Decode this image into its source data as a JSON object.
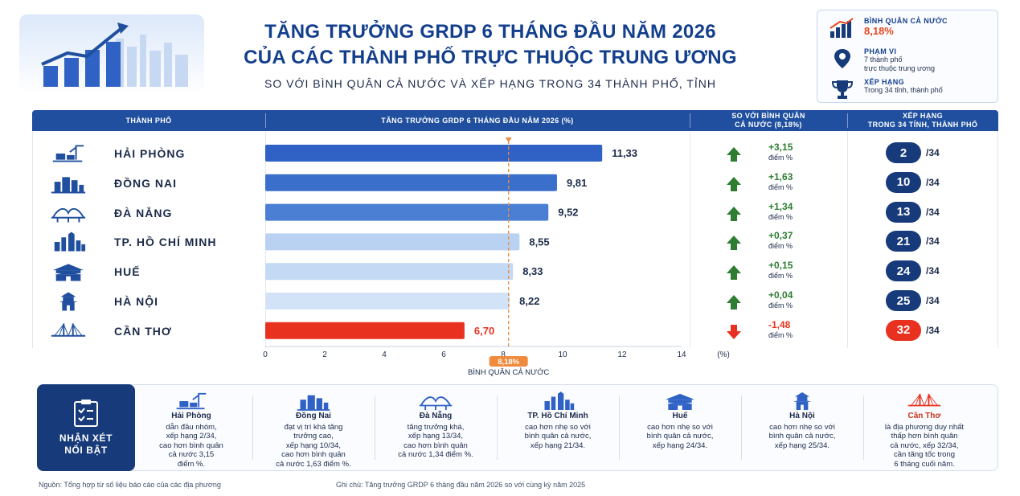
{
  "title": {
    "line1": "TĂNG TRƯỞNG GRDP 6 THÁNG ĐẦU NĂM 2026",
    "line2": "CỦA CÁC THÀNH PHỐ TRỰC THUỘC TRUNG ƯƠNG",
    "subtitle": "SO VỚI BÌNH QUÂN CẢ NƯỚC VÀ XẾP HẠNG TRONG 34 THÀNH PHỐ, TỈNH"
  },
  "info": {
    "average_label": "BÌNH QUÂN CẢ NƯỚC",
    "average_value": "8,18%",
    "scope_label": "PHẠM VI",
    "scope_line1": "7 thành phố",
    "scope_line2": "trực thuộc trung ương",
    "rank_label": "XẾP HẠNG",
    "rank_text": "Trong 34 tỉnh, thành phố"
  },
  "table_header": {
    "city": "THÀNH PHỐ",
    "growth": "TĂNG TRƯỞNG GRDP 6 THÁNG ĐẦU NĂM 2026 (%)",
    "compare_line1": "SO VỚI BÌNH QUÂN",
    "compare_line2": "CẢ NƯỚC (8,18%)",
    "rank_line1": "XẾP HẠNG",
    "rank_line2": "TRONG 34 TỈNH, THÀNH PHỐ"
  },
  "rows": [
    {
      "city": "HẢI PHÒNG",
      "value_label": "11,33",
      "diff": "+3,15",
      "diff_unit": "điểm %",
      "rank": "2",
      "rank_total": "/34",
      "trend": "up",
      "icon": "port-crane-icon"
    },
    {
      "city": "ĐỒNG NAI",
      "value_label": "9,81",
      "diff": "+1,63",
      "diff_unit": "điểm %",
      "rank": "10",
      "rank_total": "/34",
      "trend": "up",
      "icon": "industrial-buildings-icon"
    },
    {
      "city": "ĐÀ NẴNG",
      "value_label": "9,52",
      "diff": "+1,34",
      "diff_unit": "điểm %",
      "rank": "13",
      "rank_total": "/34",
      "trend": "up",
      "icon": "dragon-bridge-icon"
    },
    {
      "city": "TP. HỒ CHÍ MINH",
      "value_label": "8,55",
      "diff": "+0,37",
      "diff_unit": "điểm %",
      "rank": "21",
      "rank_total": "/34",
      "trend": "up",
      "icon": "skyline-icon"
    },
    {
      "city": "HUẾ",
      "value_label": "8,33",
      "diff": "+0,15",
      "diff_unit": "điểm %",
      "rank": "24",
      "rank_total": "/34",
      "trend": "up",
      "icon": "imperial-gate-icon"
    },
    {
      "city": "HÀ NỘI",
      "value_label": "8,22",
      "diff": "+0,04",
      "diff_unit": "điểm %",
      "rank": "25",
      "rank_total": "/34",
      "trend": "up",
      "icon": "pagoda-icon"
    },
    {
      "city": "CẦN THƠ",
      "value_label": "6,70",
      "diff": "-1,48",
      "diff_unit": "điểm %",
      "rank": "32",
      "rank_total": "/34",
      "trend": "down",
      "icon": "cable-bridge-icon"
    }
  ],
  "chart_data": {
    "type": "bar",
    "orientation": "horizontal",
    "categories": [
      "HẢI PHÒNG",
      "ĐỒNG NAI",
      "ĐÀ NẴNG",
      "TP. HỒ CHÍ MINH",
      "HUẾ",
      "HÀ NỘI",
      "CẦN THƠ"
    ],
    "values": [
      11.33,
      9.81,
      9.52,
      8.55,
      8.33,
      8.22,
      6.7
    ],
    "value_labels": [
      "11,33",
      "9,81",
      "9,52",
      "8,55",
      "8,33",
      "8,22",
      "6,70"
    ],
    "xlim": [
      0,
      14
    ],
    "x_ticks": [
      "0",
      "2",
      "4",
      "6",
      "8",
      "10",
      "12",
      "14"
    ],
    "x_unit": "(%)",
    "reference_value": 8.18,
    "reference_label": "8,18%",
    "reference_caption": "BÌNH QUÂN CẢ NƯỚC",
    "bar_colors": [
      "#2f62c4",
      "#3a6fcc",
      "#4a7fd4",
      "#b9d2f1",
      "#c4daf4",
      "#d2e3f7",
      "#e8311f"
    ],
    "reference_color": "#f08a3c",
    "grid": false
  },
  "comments": {
    "label_line1": "NHẬN XÉT",
    "label_line2": "NỔI BẬT",
    "items": [
      {
        "name": "Hải Phòng",
        "text": [
          "dẫn đầu nhóm,",
          "xếp hạng 2/34,",
          "cao hơn bình quân",
          "cả nước 3,15",
          "điểm %."
        ],
        "icon": "port-crane-icon"
      },
      {
        "name": "Đồng Nai",
        "text": [
          "đạt vị trí khá tăng",
          "trưởng cao,",
          "xếp hạng 10/34,",
          "cao hơn bình quân",
          "cả nước 1,63 điểm %."
        ],
        "icon": "industrial-buildings-icon"
      },
      {
        "name": "Đà Nẵng",
        "text": [
          "tăng trưởng khá,",
          "xếp hạng 13/34,",
          "cao hơn bình quân",
          "cả nước 1,34 điểm %."
        ],
        "icon": "dragon-bridge-icon"
      },
      {
        "name": "TP. Hồ Chí Minh",
        "text": [
          "cao hơn nhẹ so với",
          "bình quân cả nước,",
          "xếp hạng 21/34."
        ],
        "icon": "skyline-icon"
      },
      {
        "name": "Huế",
        "text": [
          "cao hơn nhẹ so với",
          "bình quân cả nước,",
          "xếp hạng 24/34."
        ],
        "icon": "imperial-gate-icon"
      },
      {
        "name": "Hà Nội",
        "text": [
          "cao hơn nhẹ so với",
          "bình quân cả nước,",
          "xếp hạng 25/34."
        ],
        "icon": "pagoda-icon"
      },
      {
        "name": "Cần Thơ",
        "text": [
          "là địa phương duy nhất",
          "thấp hơn bình quân",
          "cả nước, xếp 32/34,",
          "cần tăng tốc trong",
          "6 tháng cuối năm."
        ],
        "icon": "cable-bridge-icon"
      }
    ]
  },
  "footer": {
    "source": "Nguồn: Tổng hợp từ số liệu báo cáo của các địa phương",
    "note": "Ghi chú: Tăng trưởng GRDP 6 tháng đầu năm 2026 so với cùng kỳ năm 2025"
  },
  "colors": {
    "navy": "#163a7a",
    "header_blue": "#1f4f9e",
    "up_green": "#2e7d32",
    "down_red": "#e8311f",
    "accent_orange": "#e8481f"
  }
}
